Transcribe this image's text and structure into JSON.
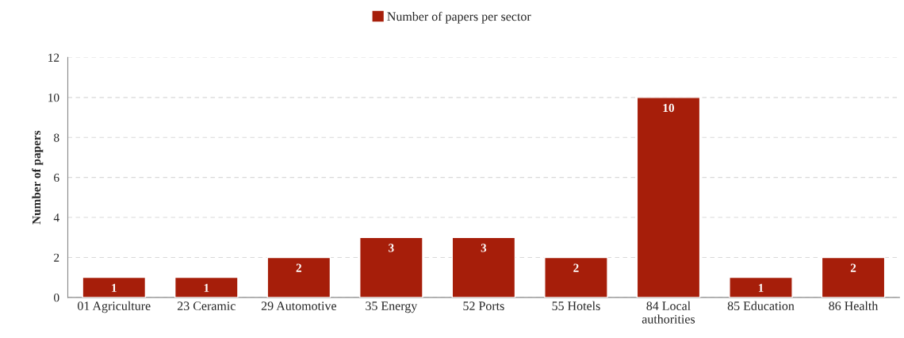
{
  "chart_data": {
    "type": "bar",
    "ylabel": "Number of papers",
    "categories": [
      "01 Agriculture",
      "23 Ceramic",
      "29 Automotive",
      "35 Energy",
      "52 Ports",
      "55 Hotels",
      "84 Local authorities",
      "85 Education",
      "86 Health"
    ],
    "series": [
      {
        "name": "Number of papers per sector",
        "color": "#a61e0a",
        "values": [
          1,
          1,
          2,
          3,
          3,
          2,
          10,
          1,
          2
        ]
      }
    ],
    "ylim": [
      0,
      12
    ],
    "yticks": [
      0,
      2,
      4,
      6,
      8,
      10,
      12
    ],
    "grid": "y",
    "legend": "top",
    "data_labels": true
  }
}
